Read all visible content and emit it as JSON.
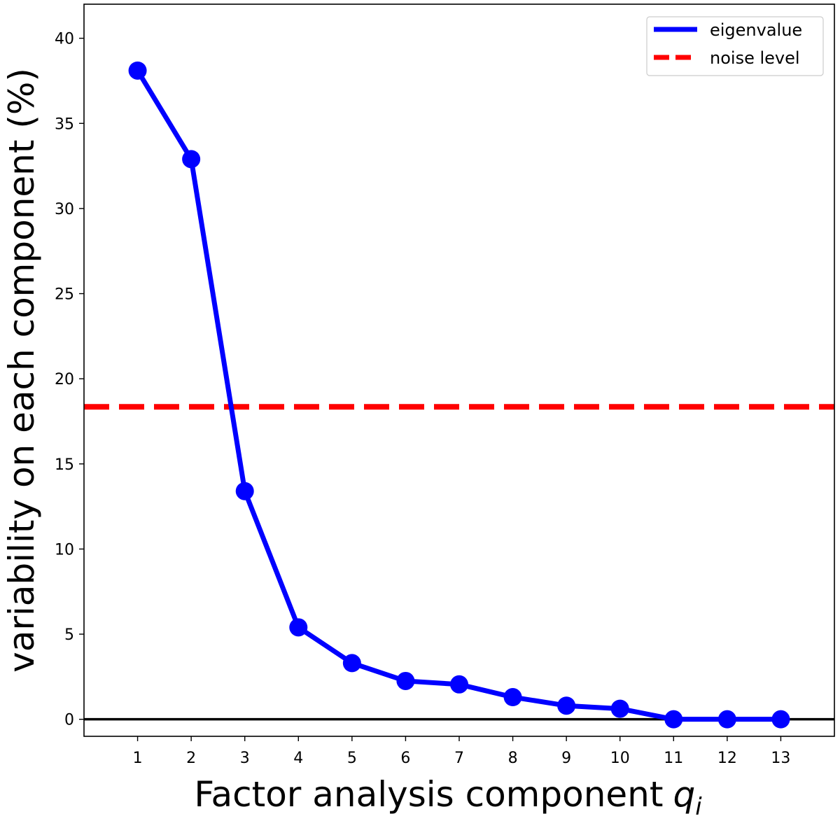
{
  "chart_data": {
    "type": "line",
    "title": "",
    "xlabel": "Factor analysis component",
    "xlabel_symbol": "q",
    "xlabel_subscript": "i",
    "ylabel": "variability on each component (%)",
    "xlim": [
      0,
      14
    ],
    "ylim": [
      -1,
      42
    ],
    "x_ticks": [
      1,
      2,
      3,
      4,
      5,
      6,
      7,
      8,
      9,
      10,
      11,
      12,
      13
    ],
    "y_ticks": [
      0,
      5,
      10,
      15,
      20,
      25,
      30,
      35,
      40
    ],
    "grid": false,
    "legend_position": "top-right",
    "series": [
      {
        "name": "eigenvalue",
        "color": "#0000ff",
        "style": "solid-with-markers",
        "x": [
          1,
          2,
          3,
          4,
          5,
          6,
          7,
          8,
          9,
          10,
          11,
          12,
          13
        ],
        "values": [
          38.1,
          32.9,
          13.4,
          5.4,
          3.3,
          2.25,
          2.05,
          1.3,
          0.8,
          0.62,
          0.0,
          0.0,
          0.0
        ]
      },
      {
        "name": "noise level",
        "color": "#ff0000",
        "style": "dashed-horizontal",
        "value": 18.35
      }
    ],
    "reference_line": {
      "value": 0,
      "color": "#000000"
    }
  }
}
